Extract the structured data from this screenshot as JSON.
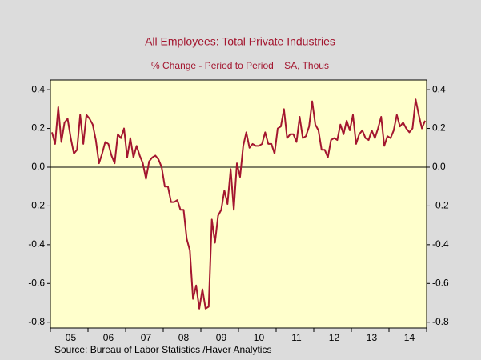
{
  "chart_data": {
    "type": "line",
    "title": "All Employees: Total Private Industries",
    "subtitle": "% Change - Period to Period    SA, Thous",
    "source": "Source:  Bureau of Labor Statistics /Haver Analytics",
    "categories": [
      null,
      null,
      null,
      null,
      null,
      null,
      "05",
      null,
      null,
      null,
      null,
      null,
      null,
      null,
      null,
      null,
      null,
      null,
      "06",
      null,
      null,
      null,
      null,
      null,
      null,
      null,
      null,
      null,
      null,
      null,
      "07",
      null,
      null,
      null,
      null,
      null,
      null,
      null,
      null,
      null,
      null,
      null,
      "08",
      null,
      null,
      null,
      null,
      null,
      null,
      null,
      null,
      null,
      null,
      null,
      "09",
      null,
      null,
      null,
      null,
      null,
      null,
      null,
      null,
      null,
      null,
      null,
      "10",
      null,
      null,
      null,
      null,
      null,
      null,
      null,
      null,
      null,
      null,
      null,
      "11",
      null,
      null,
      null,
      null,
      null,
      null,
      null,
      null,
      null,
      null,
      null,
      "12",
      null,
      null,
      null,
      null,
      null,
      null,
      null,
      null,
      null,
      null,
      null,
      "13",
      null,
      null,
      null,
      null,
      null,
      null,
      null,
      null,
      null,
      null,
      null,
      "14",
      null,
      null,
      null,
      null,
      null
    ],
    "series": [
      {
        "color": "#a3162f",
        "values": [
          0.18,
          0.12,
          0.31,
          0.13,
          0.23,
          0.25,
          0.15,
          0.07,
          0.09,
          0.27,
          0.12,
          0.27,
          0.25,
          0.22,
          0.14,
          0.02,
          0.07,
          0.13,
          0.12,
          0.06,
          0.02,
          0.17,
          0.15,
          0.2,
          0.05,
          0.15,
          0.05,
          0.11,
          0.06,
          0.02,
          -0.06,
          0.03,
          0.05,
          0.06,
          0.04,
          0.0,
          -0.1,
          -0.1,
          -0.18,
          -0.18,
          -0.17,
          -0.22,
          -0.22,
          -0.37,
          -0.43,
          -0.68,
          -0.61,
          -0.73,
          -0.63,
          -0.73,
          -0.72,
          -0.27,
          -0.39,
          -0.25,
          -0.22,
          -0.12,
          -0.19,
          -0.01,
          -0.22,
          0.02,
          -0.05,
          0.11,
          0.18,
          0.1,
          0.12,
          0.11,
          0.11,
          0.12,
          0.18,
          0.12,
          0.12,
          0.07,
          0.2,
          0.21,
          0.3,
          0.15,
          0.17,
          0.17,
          0.13,
          0.26,
          0.15,
          0.16,
          0.21,
          0.34,
          0.22,
          0.19,
          0.09,
          0.09,
          0.05,
          0.14,
          0.15,
          0.14,
          0.22,
          0.17,
          0.24,
          0.19,
          0.27,
          0.12,
          0.17,
          0.19,
          0.15,
          0.14,
          0.19,
          0.15,
          0.2,
          0.26,
          0.11,
          0.16,
          0.15,
          0.19,
          0.27,
          0.21,
          0.23,
          0.2,
          0.18,
          0.2,
          0.35,
          0.27,
          0.2,
          0.24
        ]
      }
    ],
    "ylim": [
      -0.83,
      0.45
    ],
    "yticks": [
      -0.8,
      -0.6,
      -0.4,
      -0.2,
      {
        "value": 0,
        "label": "0.0"
      },
      0.2,
      0.4
    ],
    "zero_line": true,
    "background": "#ffffcc"
  }
}
